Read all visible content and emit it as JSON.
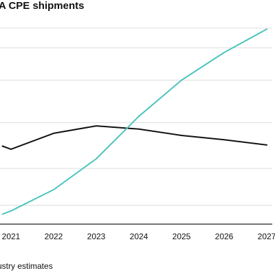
{
  "chart_data": {
    "type": "line",
    "title": "A CPE shipments",
    "source": "ustry estimates",
    "xlabel": "",
    "ylabel": "",
    "x": [
      "2021",
      "2022",
      "2023",
      "2024",
      "2025",
      "2026",
      "2027"
    ],
    "series": [
      {
        "color": "#111111",
        "points": [
          {
            "x": 2020.8,
            "y": 3.5
          },
          {
            "x": 2021.0,
            "y": 3.35
          },
          {
            "x": 2022.0,
            "y": 4.1
          },
          {
            "x": 2023.0,
            "y": 4.45
          },
          {
            "x": 2024.0,
            "y": 4.3
          },
          {
            "x": 2025.0,
            "y": 4.0
          },
          {
            "x": 2026.0,
            "y": 3.8
          },
          {
            "x": 2027.0,
            "y": 3.55
          }
        ]
      },
      {
        "color": "#4dc4bd",
        "points": [
          {
            "x": 2020.8,
            "y": 0.3
          },
          {
            "x": 2021.0,
            "y": 0.45
          },
          {
            "x": 2022.0,
            "y": 1.45
          },
          {
            "x": 2023.0,
            "y": 2.9
          },
          {
            "x": 2024.0,
            "y": 4.9
          },
          {
            "x": 2025.0,
            "y": 6.6
          },
          {
            "x": 2026.0,
            "y": 7.9
          },
          {
            "x": 2027.0,
            "y": 9.0
          }
        ]
      }
    ],
    "ylim": [
      -0.3,
      9.4
    ],
    "yticks": [
      0,
      1,
      2,
      3,
      4,
      5,
      6
    ],
    "grid": true,
    "gridlines_y": [
      0.72,
      2.45,
      4.6,
      6.6,
      8.12,
      9.05
    ]
  },
  "colors": {
    "grid": "#dddddd",
    "axis": "#222222"
  }
}
